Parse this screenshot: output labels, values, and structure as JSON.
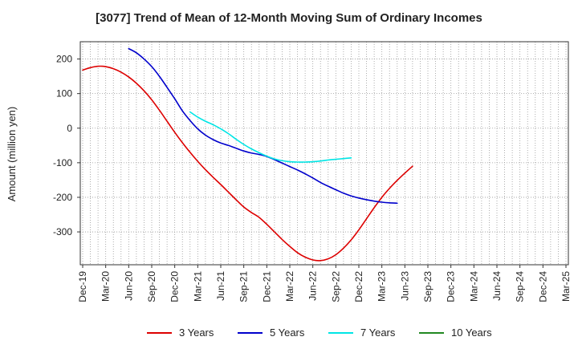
{
  "chart_data": {
    "type": "line",
    "title": "[3077]  Trend of Mean of 12-Month Moving Sum of Ordinary Incomes",
    "xlabel": "",
    "ylabel": "Amount (million yen)",
    "ylim": [
      -395,
      250
    ],
    "yticks": [
      200,
      100,
      0,
      -100,
      -200,
      -300
    ],
    "grid": true,
    "legend_position": "bottom",
    "x_tick_labels": [
      "Dec-19",
      "Mar-20",
      "Jun-20",
      "Sep-20",
      "Dec-20",
      "Mar-21",
      "Jun-21",
      "Sep-21",
      "Dec-21",
      "Mar-22",
      "Jun-22",
      "Sep-22",
      "Dec-22",
      "Mar-23",
      "Jun-23",
      "Sep-23",
      "Dec-23",
      "Mar-24",
      "Jun-24",
      "Sep-24",
      "Dec-24",
      "Mar-25"
    ],
    "series": [
      {
        "name": "3 Years",
        "color": "#dd0000",
        "points": [
          [
            0,
            168
          ],
          [
            1,
            175
          ],
          [
            2,
            179
          ],
          [
            3,
            178
          ],
          [
            4,
            172
          ],
          [
            5,
            162
          ],
          [
            6,
            148
          ],
          [
            7,
            130
          ],
          [
            8,
            108
          ],
          [
            9,
            82
          ],
          [
            10,
            52
          ],
          [
            11,
            20
          ],
          [
            12,
            -12
          ],
          [
            13,
            -42
          ],
          [
            14,
            -70
          ],
          [
            15,
            -96
          ],
          [
            16,
            -120
          ],
          [
            17,
            -142
          ],
          [
            18,
            -163
          ],
          [
            19,
            -185
          ],
          [
            20,
            -207
          ],
          [
            21,
            -228
          ],
          [
            22,
            -244
          ],
          [
            23,
            -258
          ],
          [
            24,
            -278
          ],
          [
            25,
            -300
          ],
          [
            26,
            -322
          ],
          [
            27,
            -342
          ],
          [
            28,
            -360
          ],
          [
            29,
            -373
          ],
          [
            30,
            -381
          ],
          [
            31,
            -383
          ],
          [
            32,
            -378
          ],
          [
            33,
            -366
          ],
          [
            34,
            -347
          ],
          [
            35,
            -323
          ],
          [
            36,
            -294
          ],
          [
            37,
            -262
          ],
          [
            38,
            -230
          ],
          [
            39,
            -200
          ],
          [
            40,
            -174
          ],
          [
            41,
            -151
          ],
          [
            42,
            -130
          ],
          [
            43,
            -110
          ]
        ]
      },
      {
        "name": "5 Years",
        "color": "#0000cc",
        "points": [
          [
            6,
            230
          ],
          [
            7,
            218
          ],
          [
            8,
            200
          ],
          [
            9,
            178
          ],
          [
            10,
            150
          ],
          [
            11,
            118
          ],
          [
            12,
            85
          ],
          [
            13,
            50
          ],
          [
            14,
            22
          ],
          [
            15,
            -2
          ],
          [
            16,
            -20
          ],
          [
            17,
            -33
          ],
          [
            18,
            -43
          ],
          [
            19,
            -50
          ],
          [
            20,
            -58
          ],
          [
            21,
            -66
          ],
          [
            22,
            -72
          ],
          [
            23,
            -76
          ],
          [
            24,
            -82
          ],
          [
            25,
            -91
          ],
          [
            26,
            -101
          ],
          [
            27,
            -111
          ],
          [
            28,
            -121
          ],
          [
            29,
            -132
          ],
          [
            30,
            -144
          ],
          [
            31,
            -157
          ],
          [
            32,
            -168
          ],
          [
            33,
            -178
          ],
          [
            34,
            -188
          ],
          [
            35,
            -196
          ],
          [
            36,
            -202
          ],
          [
            37,
            -207
          ],
          [
            38,
            -211
          ],
          [
            39,
            -214
          ],
          [
            40,
            -216
          ],
          [
            41,
            -217
          ]
        ]
      },
      {
        "name": "7 Years",
        "color": "#00e5e5",
        "points": [
          [
            14,
            47
          ],
          [
            15,
            32
          ],
          [
            16,
            20
          ],
          [
            17,
            10
          ],
          [
            18,
            -2
          ],
          [
            19,
            -16
          ],
          [
            20,
            -32
          ],
          [
            21,
            -47
          ],
          [
            22,
            -60
          ],
          [
            23,
            -71
          ],
          [
            24,
            -81
          ],
          [
            25,
            -89
          ],
          [
            26,
            -94
          ],
          [
            27,
            -97
          ],
          [
            28,
            -98
          ],
          [
            29,
            -98
          ],
          [
            30,
            -97
          ],
          [
            31,
            -95
          ],
          [
            32,
            -92
          ],
          [
            33,
            -90
          ],
          [
            34,
            -88
          ],
          [
            35,
            -86
          ]
        ]
      },
      {
        "name": "10 Years",
        "color": "#228822",
        "points": []
      }
    ]
  }
}
